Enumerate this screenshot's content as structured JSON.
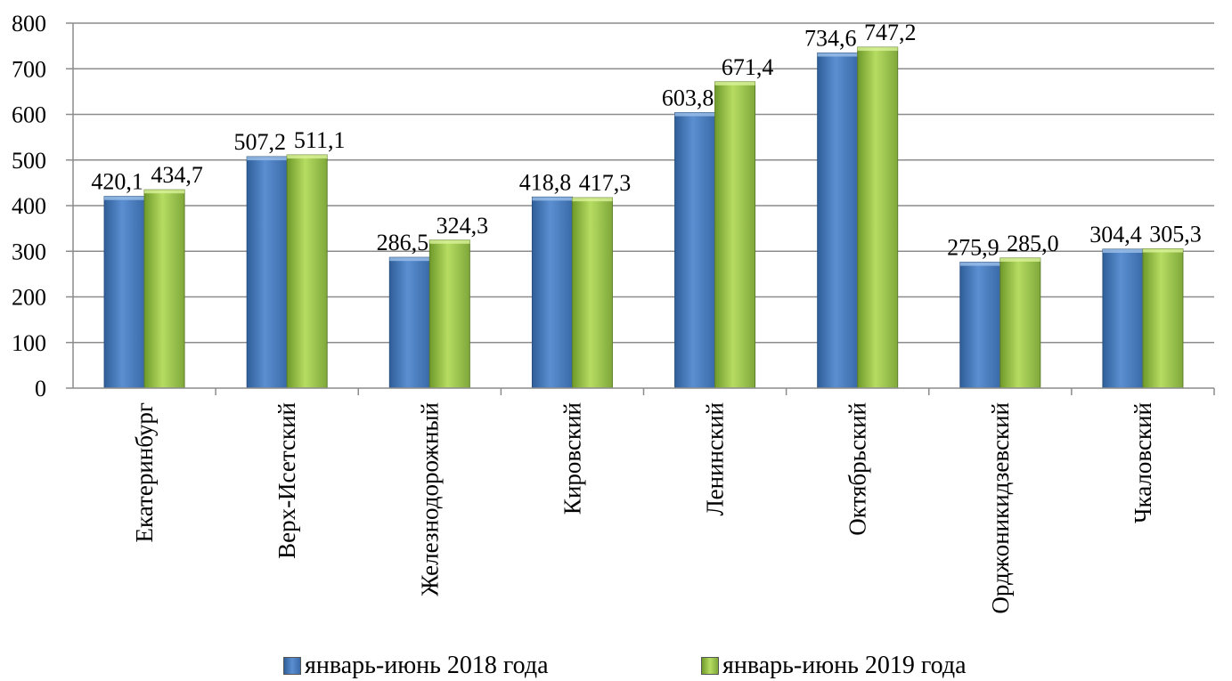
{
  "chart_data": {
    "type": "bar",
    "categories": [
      "Екатеринбург",
      "Верх-Исетский",
      "Железнодорожный",
      "Кировский",
      "Ленинский",
      "Октябрьский",
      "Орджоникидзевский",
      "Чкаловский"
    ],
    "series": [
      {
        "name": "январь-июнь 2018 года",
        "values": [
          420.1,
          507.2,
          286.5,
          418.8,
          603.8,
          734.6,
          275.9,
          304.4
        ],
        "labels": [
          "420,1",
          "507,2",
          "286,5",
          "418,8",
          "603,8",
          "734,6",
          "275,9",
          "304,4"
        ],
        "color": "#4F81BD"
      },
      {
        "name": "январь-июнь 2019 года",
        "values": [
          434.7,
          511.1,
          324.3,
          417.3,
          671.4,
          747.2,
          285.0,
          305.3
        ],
        "labels": [
          "434,7",
          "511,1",
          "324,3",
          "417,3",
          "671,4",
          "747,2",
          "285,0",
          "305,3"
        ],
        "color": "#9BBB59"
      }
    ],
    "yticks": [
      "0",
      "100",
      "200",
      "300",
      "400",
      "500",
      "600",
      "700",
      "800"
    ],
    "ylim": [
      0,
      800
    ],
    "grid": true,
    "legend_position": "bottom"
  }
}
